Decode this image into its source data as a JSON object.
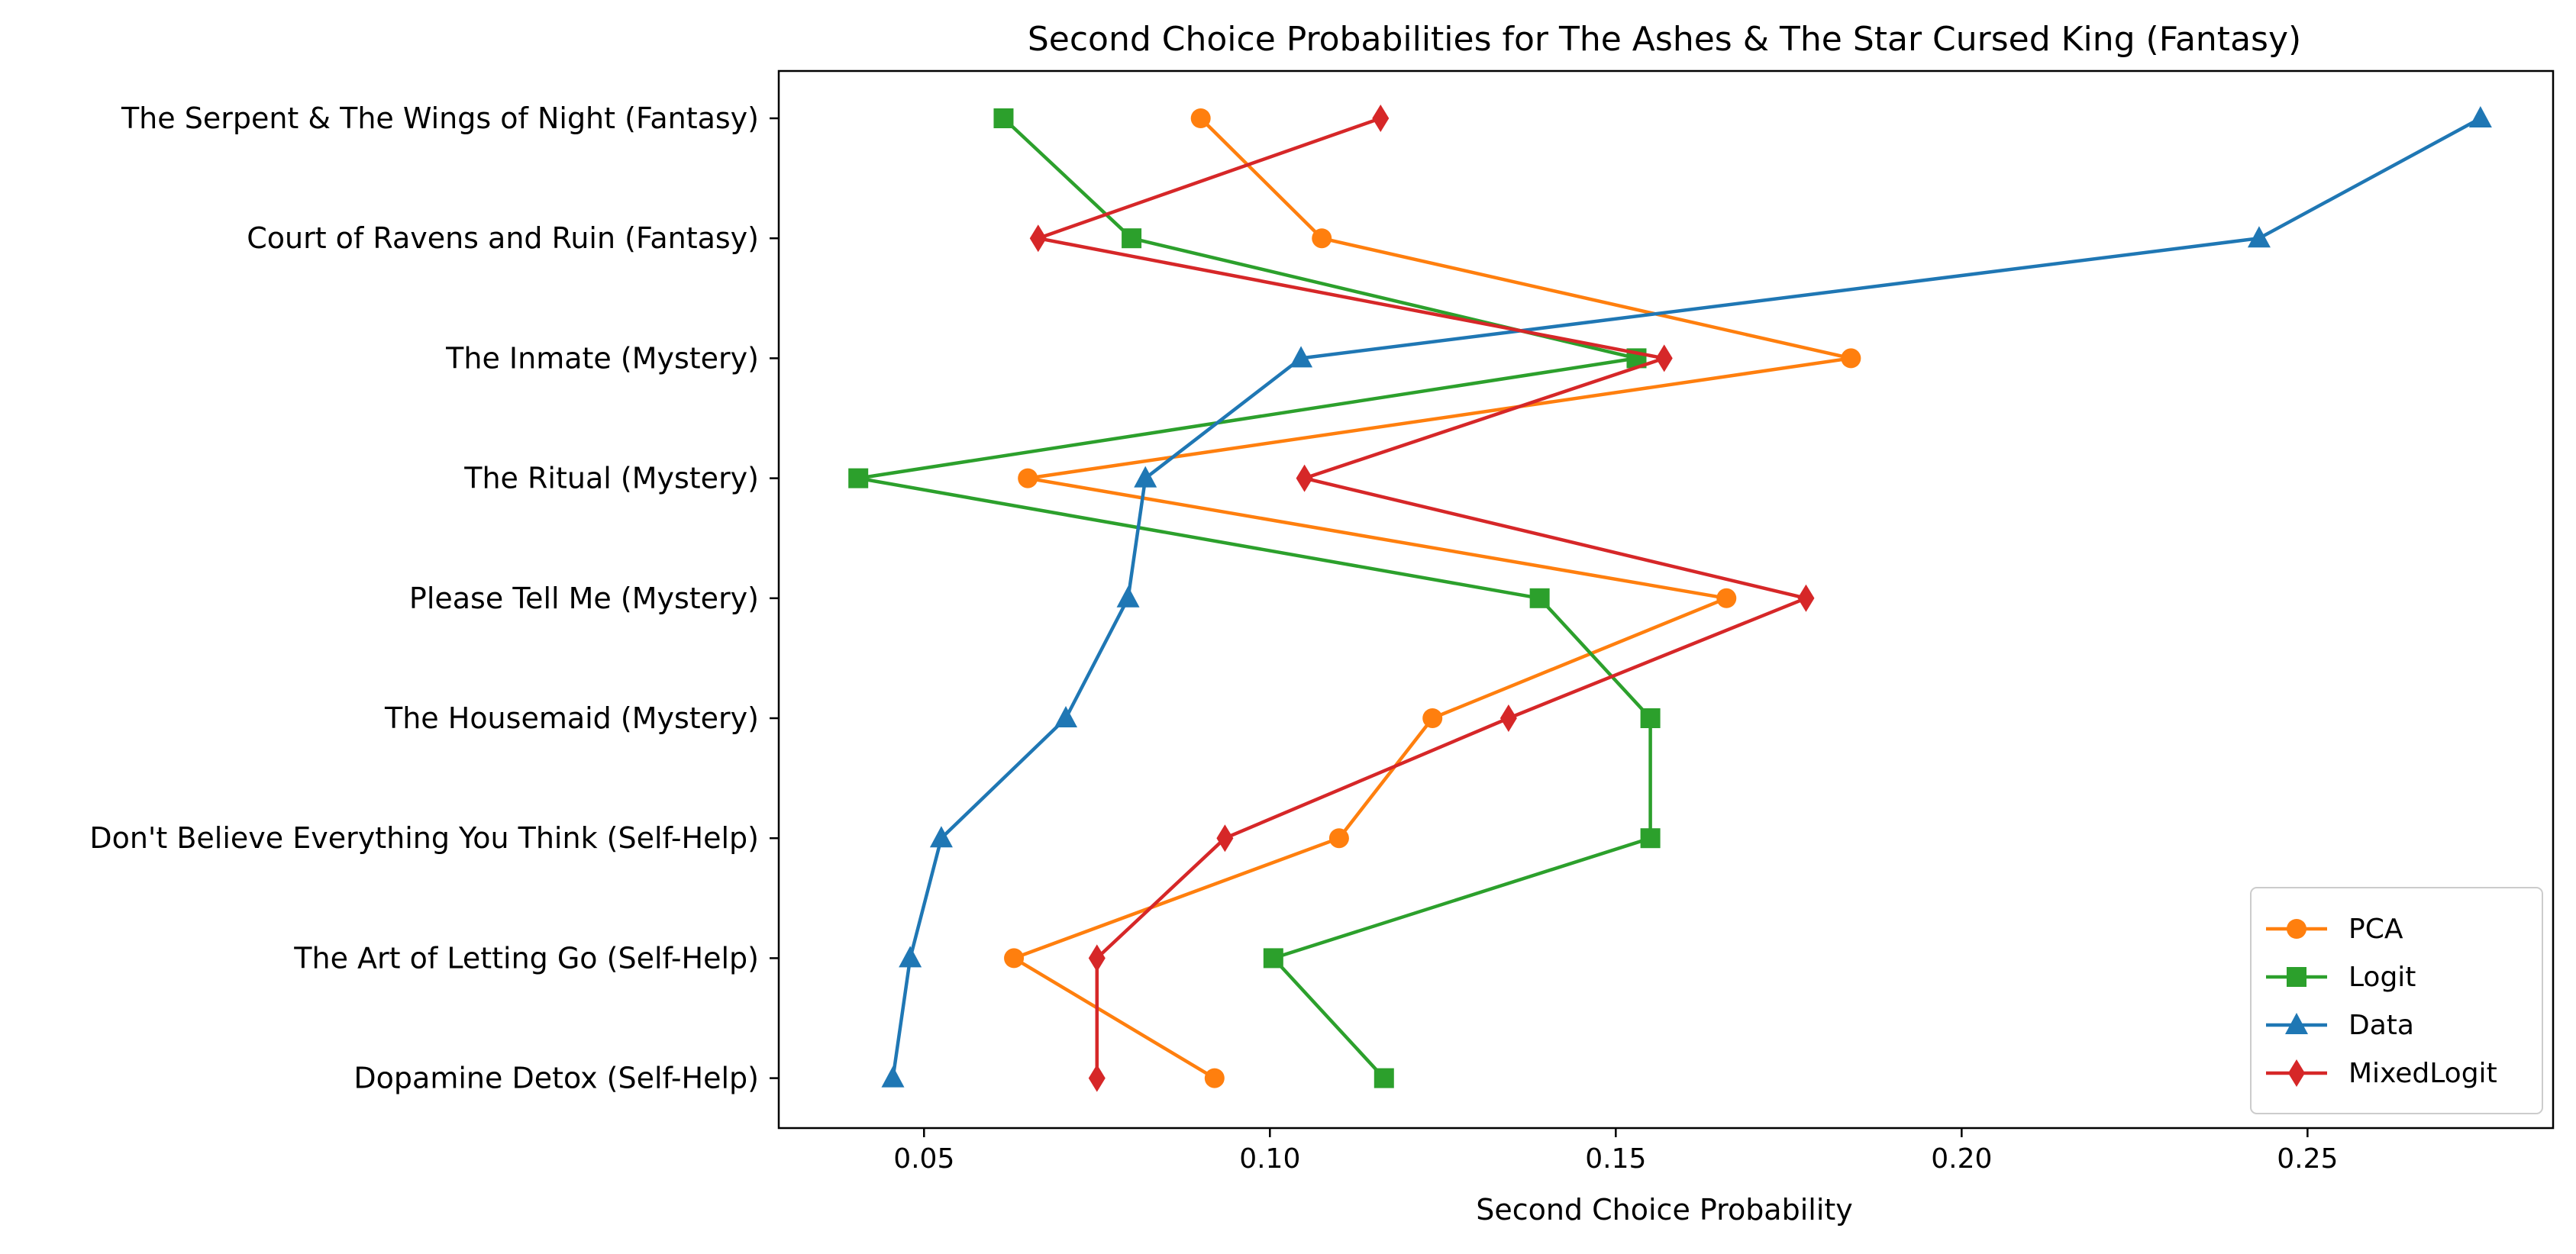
{
  "chart_data": {
    "type": "line",
    "title": "Second Choice Probabilities for The Ashes & The Star Cursed King (Fantasy)",
    "xlabel": "Second Choice Probability",
    "ylabel": "",
    "xlim": [
      0.029,
      0.2855
    ],
    "x_ticks": [
      0.05,
      0.1,
      0.15,
      0.2,
      0.25
    ],
    "x_tick_labels": [
      "0.05",
      "0.10",
      "0.15",
      "0.20",
      "0.25"
    ],
    "categories": [
      "The Serpent & The Wings of Night (Fantasy)",
      "Court of Ravens and Ruin (Fantasy)",
      "The Inmate (Mystery)",
      "The Ritual (Mystery)",
      "Please Tell Me (Mystery)",
      "The Housemaid (Mystery)",
      "Don't Believe Everything You Think (Self-Help)",
      "The Art of Letting Go (Self-Help)",
      "Dopamine Detox (Self-Help)"
    ],
    "series": [
      {
        "name": "PCA",
        "color": "#ff7f0e",
        "marker": "circle",
        "values": [
          0.09,
          0.1075,
          0.184,
          0.065,
          0.166,
          0.1235,
          0.11,
          0.063,
          0.092
        ]
      },
      {
        "name": "Logit",
        "color": "#2ca02c",
        "marker": "square",
        "values": [
          0.0615,
          0.08,
          0.153,
          0.0405,
          0.139,
          0.155,
          0.155,
          0.1005,
          0.1165
        ]
      },
      {
        "name": "Data",
        "color": "#1f77b4",
        "marker": "triangle",
        "values": [
          0.275,
          0.243,
          0.1045,
          0.082,
          0.0795,
          0.0705,
          0.0525,
          0.048,
          0.0455
        ]
      },
      {
        "name": "MixedLogit",
        "color": "#d62728",
        "marker": "diamond",
        "values": [
          0.116,
          0.0665,
          0.157,
          0.105,
          0.1775,
          0.1345,
          0.0935,
          0.075,
          0.075
        ]
      }
    ],
    "legend_position": "lower-right",
    "grid": false
  }
}
